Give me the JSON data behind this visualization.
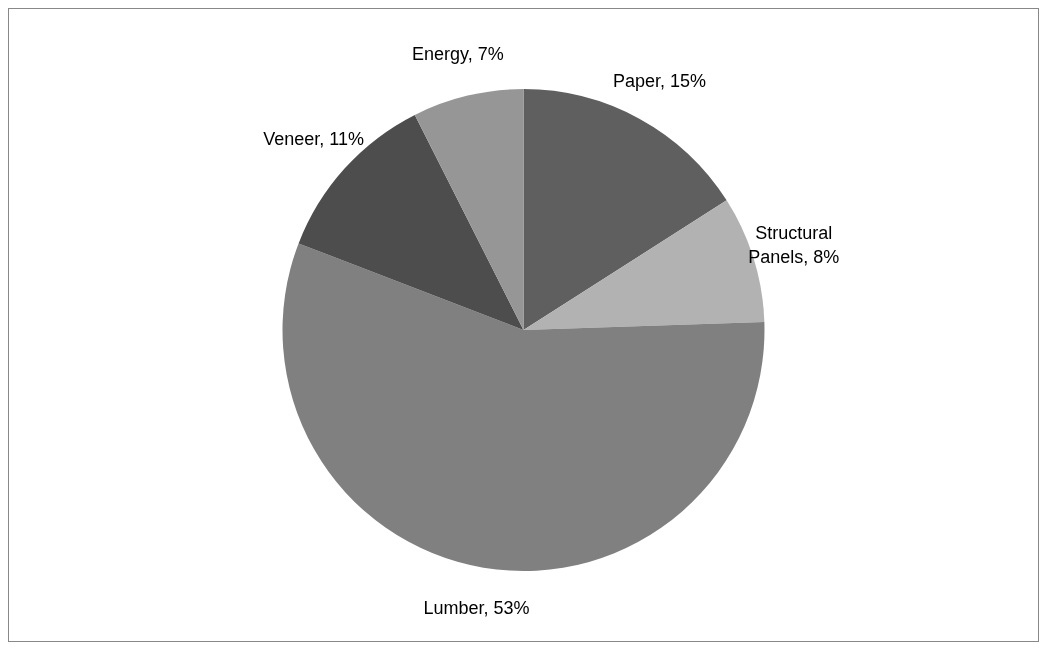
{
  "chart_data": {
    "type": "pie",
    "categories": [
      "Paper",
      "Structural Panels",
      "Lumber",
      "Veneer",
      "Energy"
    ],
    "values": [
      15,
      8,
      53,
      11,
      7
    ],
    "value_labels": [
      "15%",
      "8%",
      "53%",
      "11%",
      "7%"
    ],
    "colors": [
      "#5f5f5f",
      "#b2b2b2",
      "#808080",
      "#4d4d4d",
      "#969696"
    ],
    "legend": false
  }
}
